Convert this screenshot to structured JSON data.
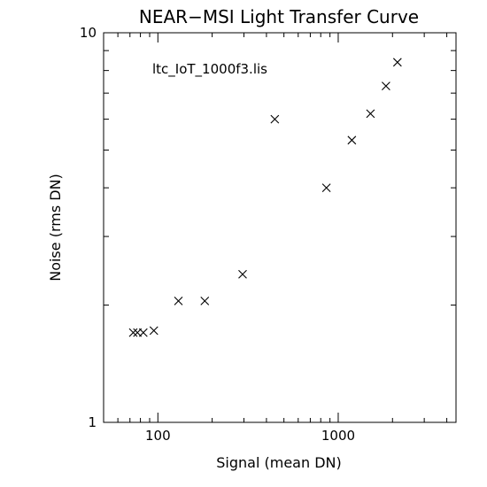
{
  "chart_data": {
    "type": "scatter",
    "title": "NEAR−MSI Light Transfer Curve",
    "xlabel": "Signal (mean DN)",
    "ylabel": "Noise (rms DN)",
    "annotation": "ltc_IoT_1000f3.lis",
    "xscale": "log",
    "yscale": "log",
    "xlim": [
      50,
      4500
    ],
    "ylim": [
      1,
      10
    ],
    "xticks": [
      {
        "value": 100,
        "label": "100"
      },
      {
        "value": 1000,
        "label": "1000"
      }
    ],
    "yticks": [
      {
        "value": 1,
        "label": "1"
      },
      {
        "value": 10,
        "label": "10"
      }
    ],
    "marker": "x",
    "grid": false,
    "points": [
      {
        "x": 73,
        "y": 1.7
      },
      {
        "x": 77,
        "y": 1.7
      },
      {
        "x": 83,
        "y": 1.7
      },
      {
        "x": 95,
        "y": 1.72
      },
      {
        "x": 130,
        "y": 2.05
      },
      {
        "x": 182,
        "y": 2.05
      },
      {
        "x": 295,
        "y": 2.4
      },
      {
        "x": 445,
        "y": 6.0
      },
      {
        "x": 860,
        "y": 4.0
      },
      {
        "x": 1190,
        "y": 5.3
      },
      {
        "x": 1510,
        "y": 6.2
      },
      {
        "x": 1840,
        "y": 7.3
      },
      {
        "x": 2130,
        "y": 8.4
      }
    ]
  }
}
